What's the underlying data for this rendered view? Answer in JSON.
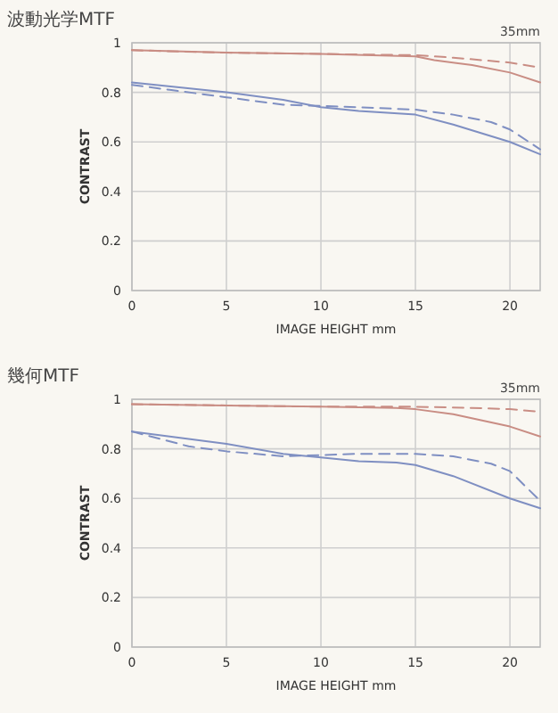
{
  "chart_data": [
    {
      "type": "line",
      "title": "波動光学MTF",
      "xlabel": "IMAGE HEIGHT  mm",
      "ylabel": "CONTRAST",
      "annotations": [
        "35mm"
      ],
      "xlim": [
        0,
        21.6
      ],
      "ylim": [
        0,
        1
      ],
      "xticks": [
        0,
        5,
        10,
        15,
        20
      ],
      "yticks": [
        0,
        0.2,
        0.4,
        0.6,
        0.8,
        1
      ],
      "grid": true,
      "series": [
        {
          "color": "#c98d84",
          "line_style": "solid",
          "x": [
            0,
            5,
            10,
            15,
            16,
            18,
            20,
            21.6
          ],
          "values": [
            0.97,
            0.96,
            0.955,
            0.945,
            0.93,
            0.91,
            0.88,
            0.84
          ]
        },
        {
          "color": "#c98d84",
          "line_style": "dashed",
          "x": [
            0,
            5,
            10,
            15,
            17,
            20,
            21.6
          ],
          "values": [
            0.97,
            0.96,
            0.955,
            0.95,
            0.94,
            0.92,
            0.9
          ]
        },
        {
          "color": "#7f8fc2",
          "line_style": "solid",
          "x": [
            0,
            5,
            8,
            10,
            12,
            15,
            17,
            20,
            21.6
          ],
          "values": [
            0.84,
            0.8,
            0.77,
            0.74,
            0.725,
            0.71,
            0.67,
            0.6,
            0.55
          ]
        },
        {
          "color": "#7f8fc2",
          "line_style": "dashed",
          "x": [
            0,
            2,
            5,
            8,
            10,
            12,
            15,
            17,
            19,
            20,
            21.6
          ],
          "values": [
            0.83,
            0.81,
            0.78,
            0.75,
            0.745,
            0.74,
            0.73,
            0.71,
            0.68,
            0.65,
            0.57
          ]
        }
      ]
    },
    {
      "type": "line",
      "title": "幾何MTF",
      "xlabel": "IMAGE HEIGHT  mm",
      "ylabel": "CONTRAST",
      "annotations": [
        "35mm"
      ],
      "xlim": [
        0,
        21.6
      ],
      "ylim": [
        0,
        1
      ],
      "xticks": [
        0,
        5,
        10,
        15,
        20
      ],
      "yticks": [
        0,
        0.2,
        0.4,
        0.6,
        0.8,
        1
      ],
      "grid": true,
      "series": [
        {
          "color": "#c98d84",
          "line_style": "solid",
          "x": [
            0,
            5,
            10,
            14,
            15,
            17,
            20,
            21.6
          ],
          "values": [
            0.98,
            0.975,
            0.97,
            0.965,
            0.96,
            0.94,
            0.89,
            0.85
          ]
        },
        {
          "color": "#c98d84",
          "line_style": "dashed",
          "x": [
            0,
            10,
            15,
            18,
            20,
            21.6
          ],
          "values": [
            0.98,
            0.97,
            0.97,
            0.965,
            0.96,
            0.95
          ]
        },
        {
          "color": "#7f8fc2",
          "line_style": "solid",
          "x": [
            0,
            5,
            8,
            10,
            12,
            14,
            15,
            17,
            20,
            21.6
          ],
          "values": [
            0.87,
            0.82,
            0.78,
            0.765,
            0.75,
            0.745,
            0.735,
            0.69,
            0.6,
            0.56
          ]
        },
        {
          "color": "#7f8fc2",
          "line_style": "dashed",
          "x": [
            0,
            3,
            5,
            8,
            10,
            12,
            15,
            17,
            19,
            20,
            21.6
          ],
          "values": [
            0.87,
            0.81,
            0.79,
            0.77,
            0.775,
            0.78,
            0.78,
            0.77,
            0.74,
            0.71,
            0.59
          ]
        }
      ]
    }
  ]
}
